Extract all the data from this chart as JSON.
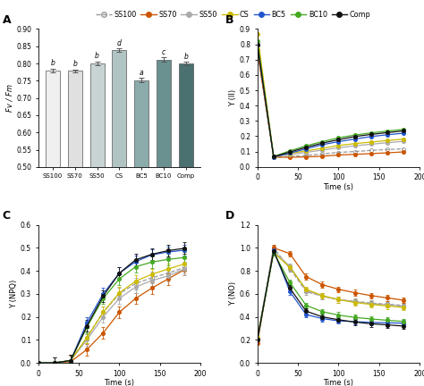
{
  "legend_labels": [
    "SS100",
    "SS70",
    "SS50",
    "CS",
    "BC5",
    "BC10",
    "Comp"
  ],
  "legend_colors": [
    "#999999",
    "#cc5500",
    "#aaaaaa",
    "#ccbb00",
    "#2255cc",
    "#44aa22",
    "#111111"
  ],
  "legend_linestyles": [
    "--",
    "-",
    "-",
    "-",
    "-",
    "-",
    "-"
  ],
  "bar_categories": [
    "SS100",
    "SS70",
    "SS50",
    "CS",
    "BC5",
    "BC10",
    "Comp"
  ],
  "bar_values": [
    0.779,
    0.778,
    0.8,
    0.838,
    0.752,
    0.811,
    0.8
  ],
  "bar_errors": [
    0.006,
    0.005,
    0.006,
    0.005,
    0.006,
    0.007,
    0.005
  ],
  "bar_colors": [
    "#f0f0f0",
    "#e0e0e0",
    "#c8d4d4",
    "#b0c4c4",
    "#8cacac",
    "#6a9090",
    "#4a7070"
  ],
  "bar_letters": [
    "b",
    "b",
    "b",
    "d",
    "a",
    "c",
    "b"
  ],
  "bar_ylim": [
    0.5,
    0.9
  ],
  "bar_yticks": [
    0.5,
    0.55,
    0.6,
    0.65,
    0.7,
    0.75,
    0.8,
    0.85,
    0.9
  ],
  "time_points_B": [
    0,
    20,
    40,
    60,
    80,
    100,
    120,
    140,
    160,
    180
  ],
  "B_SS100": [
    0.76,
    0.065,
    0.068,
    0.075,
    0.085,
    0.095,
    0.1,
    0.108,
    0.113,
    0.118
  ],
  "B_SS70": [
    0.76,
    0.063,
    0.063,
    0.065,
    0.07,
    0.078,
    0.082,
    0.087,
    0.092,
    0.098
  ],
  "B_SS50": [
    0.8,
    0.068,
    0.08,
    0.095,
    0.11,
    0.125,
    0.138,
    0.148,
    0.158,
    0.167
  ],
  "B_CS": [
    0.87,
    0.07,
    0.088,
    0.105,
    0.122,
    0.14,
    0.152,
    0.162,
    0.172,
    0.182
  ],
  "B_BC5": [
    0.8,
    0.065,
    0.09,
    0.118,
    0.145,
    0.165,
    0.182,
    0.198,
    0.21,
    0.22
  ],
  "B_BC10": [
    0.82,
    0.068,
    0.105,
    0.138,
    0.165,
    0.19,
    0.208,
    0.222,
    0.234,
    0.245
  ],
  "B_Comp": [
    0.8,
    0.067,
    0.097,
    0.128,
    0.155,
    0.178,
    0.198,
    0.212,
    0.224,
    0.235
  ],
  "time_points_C": [
    0,
    20,
    40,
    60,
    80,
    100,
    120,
    140,
    160,
    180
  ],
  "C_SS100": [
    0.0,
    0.0,
    0.01,
    0.11,
    0.22,
    0.3,
    0.345,
    0.37,
    0.39,
    0.415
  ],
  "C_SS70": [
    0.0,
    0.0,
    0.005,
    0.058,
    0.13,
    0.22,
    0.28,
    0.325,
    0.365,
    0.405
  ],
  "C_SS50": [
    0.0,
    0.0,
    0.01,
    0.1,
    0.2,
    0.28,
    0.33,
    0.358,
    0.378,
    0.408
  ],
  "C_CS": [
    0.0,
    0.0,
    0.01,
    0.11,
    0.22,
    0.305,
    0.355,
    0.385,
    0.408,
    0.43
  ],
  "C_BC5": [
    0.0,
    0.0,
    0.01,
    0.175,
    0.3,
    0.39,
    0.44,
    0.47,
    0.482,
    0.49
  ],
  "C_BC10": [
    0.0,
    0.0,
    0.01,
    0.155,
    0.28,
    0.365,
    0.418,
    0.438,
    0.45,
    0.458
  ],
  "C_Comp": [
    0.0,
    0.0,
    0.01,
    0.16,
    0.29,
    0.39,
    0.448,
    0.472,
    0.488,
    0.498
  ],
  "time_points_D": [
    0,
    20,
    40,
    60,
    80,
    100,
    120,
    140,
    160,
    180
  ],
  "D_SS100": [
    0.22,
    1.0,
    0.82,
    0.62,
    0.58,
    0.55,
    0.535,
    0.52,
    0.51,
    0.5
  ],
  "D_SS70": [
    0.17,
    1.0,
    0.95,
    0.75,
    0.68,
    0.64,
    0.61,
    0.585,
    0.565,
    0.545
  ],
  "D_SS50": [
    0.22,
    0.97,
    0.84,
    0.63,
    0.58,
    0.55,
    0.53,
    0.515,
    0.505,
    0.492
  ],
  "D_CS": [
    0.22,
    0.96,
    0.83,
    0.64,
    0.585,
    0.55,
    0.525,
    0.508,
    0.495,
    0.482
  ],
  "D_BC5": [
    0.2,
    0.98,
    0.62,
    0.42,
    0.385,
    0.365,
    0.358,
    0.352,
    0.348,
    0.345
  ],
  "D_BC10": [
    0.2,
    0.96,
    0.7,
    0.5,
    0.445,
    0.415,
    0.395,
    0.382,
    0.37,
    0.36
  ],
  "D_Comp": [
    0.2,
    0.97,
    0.65,
    0.45,
    0.4,
    0.375,
    0.355,
    0.34,
    0.33,
    0.32
  ],
  "B_ylim": [
    0.0,
    0.9
  ],
  "B_yticks": [
    0.0,
    0.1,
    0.2,
    0.3,
    0.4,
    0.5,
    0.6,
    0.7,
    0.8,
    0.9
  ],
  "C_ylim": [
    0.0,
    0.6
  ],
  "C_yticks": [
    0.0,
    0.1,
    0.2,
    0.3,
    0.4,
    0.5,
    0.6
  ],
  "D_ylim": [
    0.0,
    1.2
  ],
  "D_yticks": [
    0.0,
    0.2,
    0.4,
    0.6,
    0.8,
    1.0,
    1.2
  ],
  "time_xlim": [
    0,
    200
  ],
  "time_xticks": [
    0,
    50,
    100,
    150,
    200
  ]
}
